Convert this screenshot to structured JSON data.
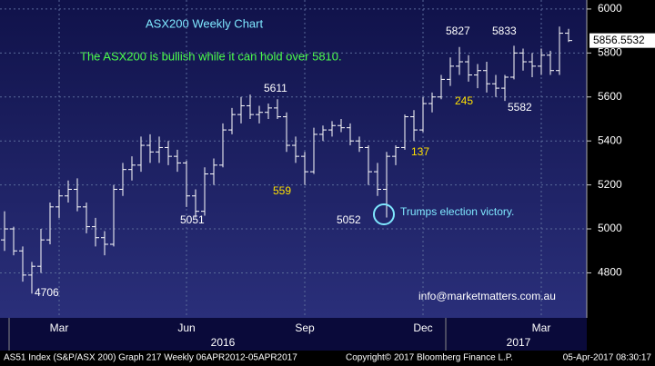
{
  "chart_data": {
    "type": "ohlc",
    "title": "ASX200 Weekly Chart",
    "subtitle": "The ASX200 is bullish while it can hold over 5810.",
    "categories": [
      null,
      null,
      null,
      null,
      null,
      null,
      "Mar",
      null,
      null,
      null,
      null,
      null,
      null,
      null,
      null,
      null,
      null,
      null,
      null,
      null,
      "Jun",
      null,
      null,
      null,
      null,
      null,
      null,
      null,
      null,
      null,
      null,
      null,
      null,
      "Sep",
      null,
      null,
      null,
      null,
      null,
      null,
      null,
      null,
      null,
      null,
      null,
      null,
      "Dec",
      null,
      null,
      null,
      null,
      null,
      null,
      null,
      null,
      null,
      null,
      null,
      null,
      "Mar",
      null,
      null,
      null
    ],
    "year_labels": [
      "2016",
      "2017"
    ],
    "open": [
      4950,
      5000,
      4900,
      4790,
      4830,
      4950,
      5100,
      5150,
      5180,
      5100,
      5010,
      4960,
      4930,
      5180,
      5270,
      5290,
      5380,
      5350,
      5370,
      5330,
      5300,
      5150,
      5080,
      5250,
      5290,
      5450,
      5520,
      5560,
      5520,
      5530,
      5550,
      5510,
      5380,
      5330,
      5260,
      5430,
      5450,
      5470,
      5460,
      5400,
      5370,
      5260,
      5180,
      5330,
      5370,
      5510,
      5450,
      5570,
      5600,
      5680,
      5740,
      5760,
      5700,
      5720,
      5660,
      5640,
      5690,
      5800,
      5760,
      5740,
      5790,
      5720,
      5890
    ],
    "high": [
      5080,
      5010,
      4920,
      4850,
      5000,
      5120,
      5180,
      5220,
      5230,
      5120,
      5050,
      4990,
      5200,
      5300,
      5330,
      5420,
      5430,
      5420,
      5400,
      5360,
      5310,
      5180,
      5280,
      5320,
      5480,
      5550,
      5600,
      5611,
      5560,
      5570,
      5590,
      5530,
      5420,
      5350,
      5460,
      5470,
      5490,
      5500,
      5480,
      5420,
      5380,
      5300,
      5350,
      5380,
      5520,
      5540,
      5600,
      5620,
      5700,
      5780,
      5827,
      5790,
      5750,
      5760,
      5700,
      5700,
      5833,
      5820,
      5800,
      5820,
      5810,
      5920,
      5910
    ],
    "low": [
      4900,
      4880,
      4760,
      4706,
      4800,
      4930,
      5050,
      5120,
      5080,
      4980,
      4920,
      4880,
      4920,
      5150,
      5220,
      5260,
      5300,
      5300,
      5290,
      5260,
      5100,
      5051,
      5060,
      5200,
      5280,
      5430,
      5480,
      5500,
      5480,
      5500,
      5500,
      5350,
      5300,
      5200,
      5250,
      5400,
      5420,
      5440,
      5380,
      5350,
      5200,
      5150,
      5052,
      5290,
      5360,
      5400,
      5440,
      5530,
      5590,
      5650,
      5700,
      5670,
      5640,
      5620,
      5600,
      5582,
      5680,
      5720,
      5690,
      5700,
      5700,
      5700,
      5850
    ],
    "close": [
      5000,
      4900,
      4790,
      4830,
      4950,
      5100,
      5150,
      5180,
      5100,
      5010,
      4960,
      4930,
      5180,
      5270,
      5290,
      5380,
      5350,
      5370,
      5330,
      5300,
      5150,
      5080,
      5250,
      5290,
      5450,
      5520,
      5560,
      5520,
      5530,
      5550,
      5510,
      5380,
      5330,
      5260,
      5430,
      5450,
      5470,
      5460,
      5400,
      5370,
      5260,
      5180,
      5330,
      5370,
      5510,
      5450,
      5570,
      5600,
      5680,
      5740,
      5760,
      5700,
      5720,
      5660,
      5640,
      5690,
      5800,
      5760,
      5740,
      5790,
      5720,
      5890,
      5856.5532
    ],
    "color": "#ffffff",
    "ylim": [
      4616,
      6041
    ],
    "yticks": [
      4800,
      5000,
      5200,
      5400,
      5600,
      5800,
      6000
    ],
    "grid": true,
    "annotations": [
      "4706",
      "5051",
      "5611",
      "559",
      "5052",
      "137",
      "5827",
      "245",
      "5582",
      "5833",
      "Trumps election victory.",
      "info@marketmatters.com.au"
    ],
    "footer": [
      "AS51 Index (S&P/ASX 200) Graph 217  Weekly 06APR2012-05APR2017",
      "Copyright© 2017 Bloomberg Finance L.P.",
      "05-Apr-2017 08:30:17"
    ]
  }
}
